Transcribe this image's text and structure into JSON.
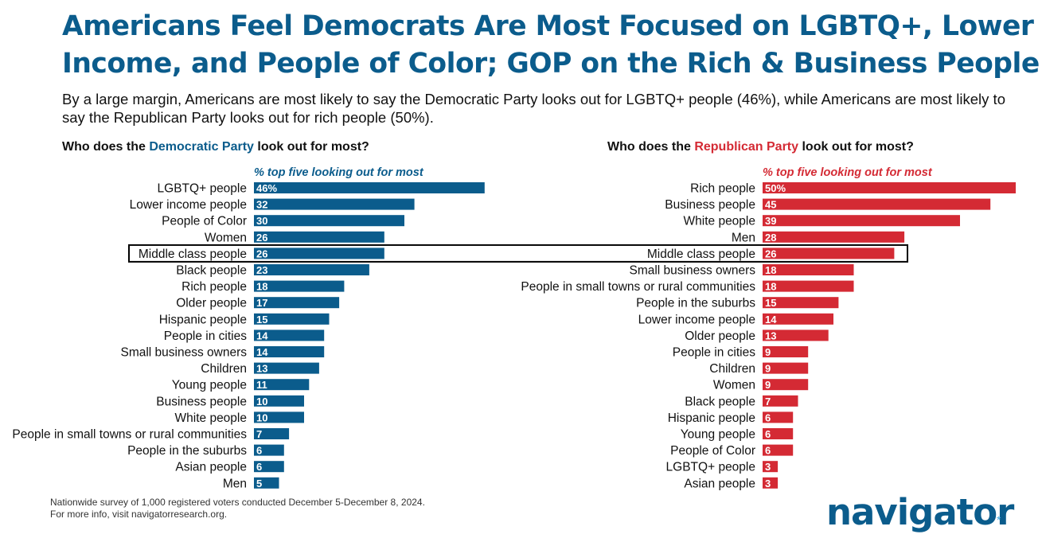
{
  "header": {
    "title_line1": "Americans Feel Democrats Are Most Focused on LGBTQ+, Lower",
    "title_line2": "Income, and People of Color; GOP on the Rich & Business People",
    "subtitle": "By a large margin, Americans are most likely to say the Democratic Party looks out for LGBTQ+ people (46%), while Americans are most likely to say the Republican Party looks out for rich people (50%)."
  },
  "colors": {
    "title": "#0b5c8c",
    "democratic": "#0b5c8c",
    "republican": "#d42a34",
    "highlight_box": "#000000"
  },
  "chart_data": [
    {
      "type": "bar",
      "orientation": "horizontal",
      "question_prefix": "Who does the ",
      "party": "Democratic Party",
      "question_suffix": " look out for most?",
      "metric_label": "% top five looking out for most",
      "value_suffix_first": "%",
      "highlighted_category": "Middle class people",
      "categories": [
        "LGBTQ+ people",
        "Lower income people",
        "People of Color",
        "Women",
        "Middle class people",
        "Black people",
        "Rich people",
        "Older people",
        "Hispanic people",
        "People in cities",
        "Small business owners",
        "Children",
        "Young people",
        "Business people",
        "White people",
        "People in small towns or rural communities",
        "People in the suburbs",
        "Asian people",
        "Men"
      ],
      "values": [
        46,
        32,
        30,
        26,
        26,
        23,
        18,
        17,
        15,
        14,
        14,
        13,
        11,
        10,
        10,
        7,
        6,
        6,
        5
      ]
    },
    {
      "type": "bar",
      "orientation": "horizontal",
      "question_prefix": "Who does the ",
      "party": "Republican Party",
      "question_suffix": " look out for most?",
      "metric_label": "% top five looking out for most",
      "value_suffix_first": "%",
      "highlighted_category": "Middle class people",
      "categories": [
        "Rich people",
        "Business people",
        "White people",
        "Men",
        "Middle class people",
        "Small business owners",
        "People in small towns or rural communities",
        "People in the suburbs",
        "Lower income people",
        "Older people",
        "People in cities",
        "Children",
        "Women",
        "Black people",
        "Hispanic people",
        "Young people",
        "People of Color",
        "LGBTQ+ people",
        "Asian people"
      ],
      "values": [
        50,
        45,
        39,
        28,
        26,
        18,
        18,
        15,
        14,
        13,
        9,
        9,
        9,
        7,
        6,
        6,
        6,
        3,
        3
      ]
    }
  ],
  "footnote": {
    "line1": "Nationwide survey of 1,000 registered voters conducted December 5-December 8, 2024.",
    "line2": "For more info, visit navigatorresearch.org."
  },
  "logo": {
    "text": "navigator",
    "star": "*"
  }
}
